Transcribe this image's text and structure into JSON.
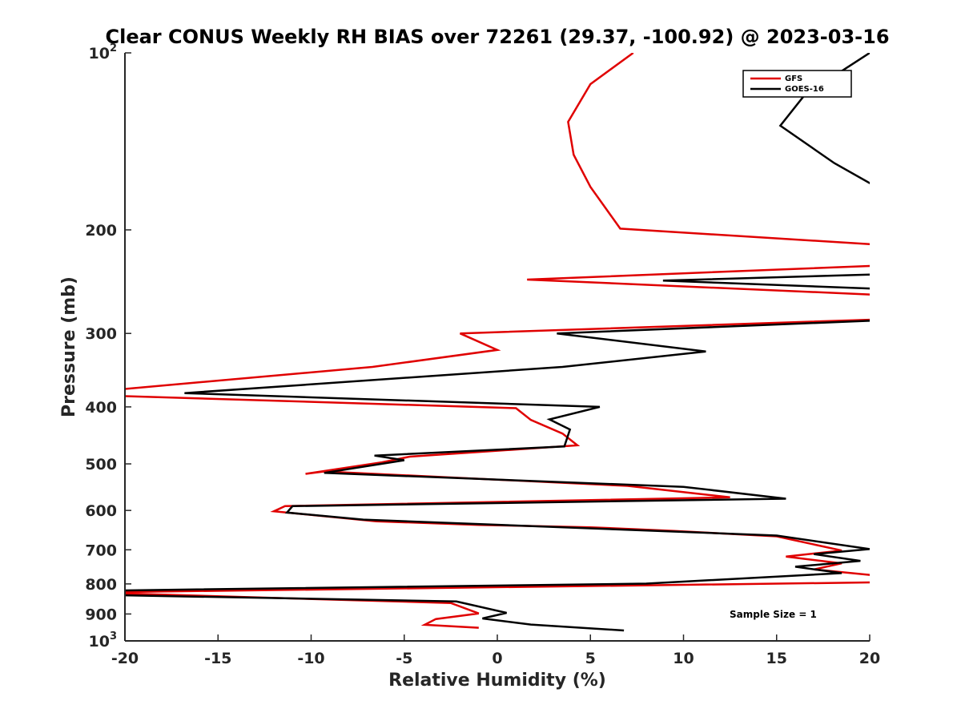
{
  "chart_data": {
    "type": "line",
    "title": "Clear CONUS Weekly RH BIAS over 72261 (29.37, -100.92) @ 2023-03-16",
    "xlabel": "Relative Humidity (%)",
    "ylabel": "Pressure (mb)",
    "xlim": [
      -20,
      20
    ],
    "ylim": [
      100,
      1000
    ],
    "yscale": "log",
    "y_reversed": true,
    "x_ticks": [
      -20,
      -15,
      -10,
      -5,
      0,
      5,
      10,
      15,
      20
    ],
    "y_ticks": [
      {
        "value": 100,
        "label": "10",
        "sup": "2"
      },
      {
        "value": 200,
        "label": "200"
      },
      {
        "value": 300,
        "label": "300"
      },
      {
        "value": 400,
        "label": "400"
      },
      {
        "value": 500,
        "label": "500"
      },
      {
        "value": 600,
        "label": "600"
      },
      {
        "value": 700,
        "label": "700"
      },
      {
        "value": 800,
        "label": "800"
      },
      {
        "value": 900,
        "label": "900"
      },
      {
        "value": 1000,
        "label": "10",
        "sup": "3"
      }
    ],
    "legend_position": "top-right",
    "annotation": "Sample Size = 1",
    "series": [
      {
        "name": "GFS",
        "color": "#e00000",
        "points": [
          [
            7.3,
            100
          ],
          [
            5.0,
            113
          ],
          [
            3.8,
            131
          ],
          [
            4.1,
            149
          ],
          [
            5.0,
            169
          ],
          [
            6.6,
            199
          ],
          [
            20.5,
            212
          ],
          [
            20.5,
            230
          ],
          [
            1.6,
            243
          ],
          [
            20.5,
            258
          ],
          [
            20.5,
            284
          ],
          [
            -2.0,
            300
          ],
          [
            0.0,
            320
          ],
          [
            -6.7,
            342
          ],
          [
            -20.5,
            374
          ],
          [
            -20.5,
            383
          ],
          [
            1.0,
            402
          ],
          [
            1.8,
            421
          ],
          [
            3.5,
            444
          ],
          [
            4.3,
            465
          ],
          [
            -4.7,
            486
          ],
          [
            -6.2,
            497
          ],
          [
            -10.3,
            520
          ],
          [
            -9.3,
            515
          ],
          [
            7.0,
            545
          ],
          [
            12.5,
            570
          ],
          [
            -11.4,
            590
          ],
          [
            -12.0,
            602
          ],
          [
            -6.5,
            626
          ],
          [
            -1.0,
            635
          ],
          [
            5.0,
            641
          ],
          [
            9.5,
            650
          ],
          [
            15.0,
            664
          ],
          [
            18.5,
            702
          ],
          [
            15.5,
            719
          ],
          [
            18.5,
            738
          ],
          [
            17.0,
            756
          ],
          [
            20.5,
            775
          ],
          [
            20.5,
            795
          ],
          [
            -20.5,
            826
          ],
          [
            -20.5,
            830
          ],
          [
            -2.5,
            862
          ],
          [
            -1.0,
            898
          ],
          [
            -3.3,
            918
          ],
          [
            -3.9,
            939
          ],
          [
            -1.0,
            950
          ]
        ]
      },
      {
        "name": "GOES-16",
        "color": "#000000",
        "points": [
          [
            20.0,
            100
          ],
          [
            16.5,
            118
          ],
          [
            15.2,
            133
          ],
          [
            18.1,
            154
          ],
          [
            20.5,
            170
          ],
          [
            20.5,
            238
          ],
          [
            8.9,
            244
          ],
          [
            20.5,
            252
          ],
          [
            20.5,
            285
          ],
          [
            3.2,
            300
          ],
          [
            11.2,
            322
          ],
          [
            3.5,
            342
          ],
          [
            -16.8,
            379
          ],
          [
            5.5,
            400
          ],
          [
            2.8,
            420
          ],
          [
            3.9,
            437
          ],
          [
            3.6,
            467
          ],
          [
            -6.6,
            484
          ],
          [
            -5.0,
            493
          ],
          [
            -9.3,
            518
          ],
          [
            10.0,
            547
          ],
          [
            15.5,
            573
          ],
          [
            -11.0,
            590
          ],
          [
            -11.3,
            605
          ],
          [
            -7.2,
            622
          ],
          [
            15.0,
            662
          ],
          [
            20.0,
            698
          ],
          [
            17.0,
            712
          ],
          [
            19.5,
            731
          ],
          [
            16.0,
            748
          ],
          [
            18.5,
            767
          ],
          [
            8.0,
            799
          ],
          [
            -20.5,
            821
          ],
          [
            -20.5,
            836
          ],
          [
            -2.2,
            857
          ],
          [
            0.5,
            896
          ],
          [
            -0.8,
            916
          ],
          [
            1.8,
            938
          ],
          [
            6.8,
            960
          ]
        ]
      }
    ]
  }
}
